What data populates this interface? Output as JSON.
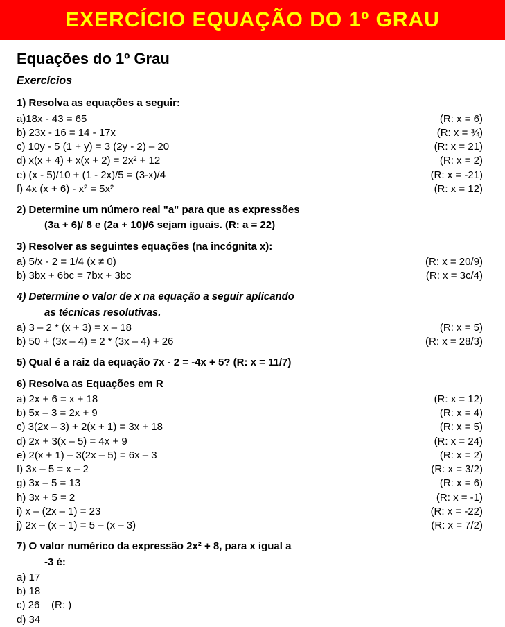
{
  "banner": {
    "text": "EXERCÍCIO EQUAÇÃO DO 1º GRAU",
    "bg_color": "#ff0000",
    "text_color": "#ffff00"
  },
  "doc": {
    "title": "Equações do 1º Grau",
    "subtitle": "Exercícios"
  },
  "q1": {
    "head": "1) Resolva as equações a seguir:",
    "items": [
      {
        "eq": "a)18x - 43 = 65",
        "ans": "(R: x = 6)"
      },
      {
        "eq": "b) 23x - 16 = 14 - 17x",
        "ans": "(R: x = ¾)"
      },
      {
        "eq": "c) 10y - 5 (1 + y) = 3 (2y - 2) – 20",
        "ans": "(R: x = 21)"
      },
      {
        "eq": "d) x(x + 4) + x(x + 2) = 2x² + 12",
        "ans": "(R: x = 2)"
      },
      {
        "eq": "e) (x - 5)/10 + (1 - 2x)/5 = (3-x)/4",
        "ans": "(R: x = -21)"
      },
      {
        "eq": "f) 4x (x + 6) - x² = 5x²",
        "ans": "(R: x = 12)"
      }
    ]
  },
  "q2": {
    "line1": "2) Determine um número real \"a\" para que as expressões",
    "line2": "(3a + 6)/ 8 e (2a + 10)/6 sejam iguais.   (R: a = 22)"
  },
  "q3": {
    "head": "3) Resolver as seguintes equações (na incógnita x):",
    "items": [
      {
        "eq": "a) 5/x - 2 = 1/4 (x ≠ 0)",
        "ans": "(R: x = 20/9)"
      },
      {
        "eq": "b) 3bx + 6bc = 7bx + 3bc",
        "ans": "(R: x = 3c/4)"
      }
    ]
  },
  "q4": {
    "line1": "4) Determine o valor de x na equação a seguir aplicando",
    "line2": "as técnicas resolutivas.",
    "items": [
      {
        "eq": "a) 3 – 2 * (x + 3) = x – 18",
        "ans": "(R: x = 5)"
      },
      {
        "eq": "b) 50 + (3x – 4) = 2 * (3x – 4) + 26",
        "ans": "(R: x = 28/3)"
      }
    ]
  },
  "q5": {
    "head": "5) Qual é a raiz da equação 7x - 2 = -4x + 5? (R: x = 11/7)"
  },
  "q6": {
    "head": "6) Resolva as Equações em R",
    "items": [
      {
        "eq": "a) 2x + 6 = x + 18",
        "ans": "(R: x = 12)"
      },
      {
        "eq": "b) 5x – 3 = 2x + 9",
        "ans": "(R: x = 4)"
      },
      {
        "eq": "c) 3(2x – 3) + 2(x + 1) = 3x + 18",
        "ans": "(R: x = 5)"
      },
      {
        "eq": "d) 2x + 3(x – 5) = 4x + 9",
        "ans": "(R: x = 24)"
      },
      {
        "eq": "e) 2(x + 1) – 3(2x – 5) = 6x – 3",
        "ans": "(R: x = 2)"
      },
      {
        "eq": "f) 3x – 5 = x – 2",
        "ans": "(R: x = 3/2)"
      },
      {
        "eq": "g) 3x – 5 = 13",
        "ans": "(R: x = 6)"
      },
      {
        "eq": "h) 3x + 5 = 2",
        "ans": "(R: x = -1)"
      },
      {
        "eq": "i) x – (2x – 1) = 23",
        "ans": "(R: x = -22)"
      },
      {
        "eq": "j) 2x – (x – 1) = 5 – (x – 3)",
        "ans": "(R: x = 7/2)"
      }
    ]
  },
  "q7": {
    "line1": "7) O valor numérico da expressão 2x² + 8, para x igual a",
    "line2": "-3 é:",
    "items": [
      {
        "eq": "a) 17",
        "ans": ""
      },
      {
        "eq": "b) 18",
        "ans": ""
      },
      {
        "eq": "c) 26    (R: )",
        "ans": ""
      },
      {
        "eq": "d) 34",
        "ans": ""
      }
    ]
  }
}
